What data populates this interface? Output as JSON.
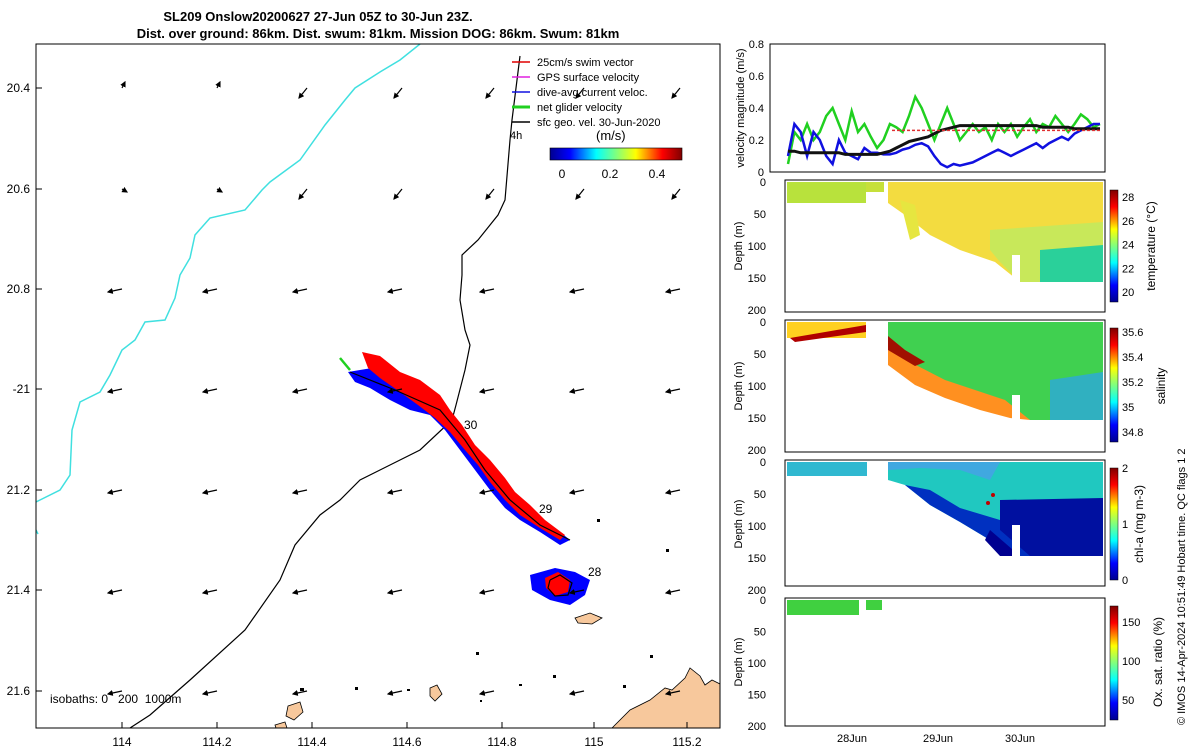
{
  "title": {
    "line1": "SL209 Onslow20200627 27-Jun 05Z to 30-Jun 23Z.",
    "line2": "Dist. over ground: 86km. Dist. swum: 81km. Mission DOG: 86km. Swum: 81km"
  },
  "map": {
    "lon_ticks": [
      "114",
      "114.2",
      "114.4",
      "114.6",
      "114.8",
      "115",
      "115.2"
    ],
    "lat_ticks": [
      "20.4",
      "20.6",
      "20.8",
      "-21",
      "21.2",
      "21.4",
      "21.6"
    ],
    "legend": [
      {
        "label": "25cm/s swim vector",
        "color": "#e00000"
      },
      {
        "label": "GPS surface velocity",
        "color": "#e020e0"
      },
      {
        "label": "dive-avg current veloc.",
        "color": "#1010e0"
      },
      {
        "label": "net glider velocity",
        "color": "#20d020"
      },
      {
        "label": "sfc geo. vel. 30-Jun-2020",
        "color": "#000000"
      }
    ],
    "scale_label": "4h",
    "colorbar_title": "(m/s)",
    "colorbar_ticks": [
      "0",
      "0.2",
      "0.4"
    ],
    "day_labels": [
      "30",
      "29",
      "28"
    ],
    "isobaths_label": "isobaths: 0   200  1000m"
  },
  "chart_data": [
    {
      "type": "line",
      "ylabel": "velocity magnitude (m/s)",
      "ylim": [
        0,
        0.8
      ],
      "y_ticks": [
        "0",
        "0.2",
        "0.4",
        "0.6",
        "0.8"
      ],
      "series": [
        {
          "color": "#20d020",
          "values": [
            0.05,
            0.25,
            0.2,
            0.3,
            0.2,
            0.25,
            0.35,
            0.4,
            0.3,
            0.2,
            0.38,
            0.25,
            0.3,
            0.22,
            0.15,
            0.2,
            0.3,
            0.28,
            0.25,
            0.35,
            0.47,
            0.4,
            0.3,
            0.2,
            0.3,
            0.4,
            0.3,
            0.2,
            0.25,
            0.3,
            0.25,
            0.28,
            0.2,
            0.3,
            0.25,
            0.3,
            0.22,
            0.28,
            0.33,
            0.25,
            0.3,
            0.28,
            0.35,
            0.3,
            0.25,
            0.3,
            0.36,
            0.33,
            0.28,
            0.3
          ]
        },
        {
          "color": "#1010e0",
          "values": [
            0.1,
            0.3,
            0.25,
            0.1,
            0.25,
            0.2,
            0.1,
            0.05,
            0.2,
            0.12,
            0.1,
            0.08,
            0.15,
            0.12,
            0.12,
            0.11,
            0.11,
            0.12,
            0.14,
            0.15,
            0.17,
            0.18,
            0.16,
            0.1,
            0.05,
            0.03,
            0.05,
            0.04,
            0.05,
            0.06,
            0.08,
            0.1,
            0.12,
            0.14,
            0.12,
            0.1,
            0.12,
            0.14,
            0.16,
            0.18,
            0.15,
            0.18,
            0.2,
            0.22,
            0.2,
            0.24,
            0.26,
            0.28,
            0.3,
            0.3
          ]
        },
        {
          "color": "#111111",
          "values": [
            0.13,
            0.13,
            0.12,
            0.12,
            0.12,
            0.12,
            0.12,
            0.12,
            0.12,
            0.11,
            0.11,
            0.11,
            0.11,
            0.11,
            0.11,
            0.12,
            0.13,
            0.15,
            0.17,
            0.19,
            0.2,
            0.21,
            0.22,
            0.24,
            0.26,
            0.27,
            0.28,
            0.29,
            0.29,
            0.29,
            0.29,
            0.29,
            0.29,
            0.29,
            0.29,
            0.29,
            0.29,
            0.29,
            0.29,
            0.29,
            0.28,
            0.28,
            0.28,
            0.28,
            0.28,
            0.27,
            0.27,
            0.27,
            0.27,
            0.27
          ]
        },
        {
          "color": "#e03030",
          "dashed": true,
          "values": [
            0.26,
            0.26,
            0.26,
            0.26,
            0.26,
            0.26,
            0.26,
            0.26,
            0.26,
            0.26,
            0.26,
            0.26,
            0.26,
            0.26,
            0.26,
            0.26,
            0.26,
            0.26,
            0.26,
            0.26,
            0.26,
            0.26,
            0.26,
            0.26,
            0.26,
            0.26,
            0.26,
            0.26,
            0.26,
            0.26,
            0.26,
            0.26,
            0.26
          ]
        }
      ]
    },
    {
      "type": "heatmap",
      "ylabel": "Depth (m)",
      "y_ticks": [
        "0",
        "50",
        "100",
        "150",
        "200"
      ],
      "colorbar_label": "temperature (°C)",
      "colorbar_ticks": [
        "28",
        "26",
        "24",
        "22",
        "20"
      ]
    },
    {
      "type": "heatmap",
      "ylabel": "Depth (m)",
      "y_ticks": [
        "0",
        "50",
        "100",
        "150",
        "200"
      ],
      "colorbar_label": "salinity",
      "colorbar_ticks": [
        "35.6",
        "35.4",
        "35.2",
        "35",
        "34.8"
      ]
    },
    {
      "type": "heatmap",
      "ylabel": "Depth (m)",
      "y_ticks": [
        "0",
        "50",
        "100",
        "150",
        "200"
      ],
      "colorbar_label": "chl-a (mg m-3)",
      "colorbar_ticks": [
        "2",
        "1",
        "0"
      ]
    },
    {
      "type": "heatmap",
      "ylabel": "Depth (m)",
      "y_ticks": [
        "0",
        "50",
        "100",
        "150",
        "200"
      ],
      "colorbar_label": "Ox. sat. ratio (%)",
      "colorbar_ticks": [
        "150",
        "100",
        "50"
      ]
    }
  ],
  "x_axis_dates": [
    "28Jun",
    "29Jun",
    "30Jun"
  ],
  "footer": "© IMOS 14-Apr-2024 10:51:49 Hobart time. QC flags 1  2"
}
